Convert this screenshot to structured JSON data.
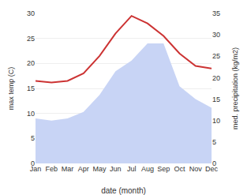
{
  "chart_data": {
    "type": "line",
    "categories": [
      "Jan",
      "Feb",
      "Mar",
      "Apr",
      "May",
      "Jun",
      "Jul",
      "Aug",
      "Sep",
      "Oct",
      "Nov",
      "Dec"
    ],
    "xlabel": "date (month)",
    "ylabel": "max temp (C)",
    "y2label": "med. precipitation (kg/m2)",
    "ylim": [
      0,
      30
    ],
    "yticks": [
      0,
      5,
      10,
      15,
      20,
      25,
      30
    ],
    "y2lim": [
      0,
      35
    ],
    "y2ticks": [
      0,
      5,
      10,
      15,
      20,
      25,
      30,
      35
    ],
    "grid": true,
    "series": [
      {
        "type": "area",
        "axis": "y2",
        "color": "#c8d4f5",
        "values": [
          10.5,
          10.0,
          10.5,
          12.0,
          16.0,
          21.5,
          24.0,
          28.0,
          28.0,
          18.0,
          15.0,
          13.0
        ]
      },
      {
        "type": "line",
        "color": "#cc3333",
        "values": [
          16.5,
          16.2,
          16.5,
          18.0,
          21.5,
          26.0,
          29.5,
          28.0,
          25.5,
          22.0,
          19.5,
          19.0
        ]
      }
    ]
  }
}
